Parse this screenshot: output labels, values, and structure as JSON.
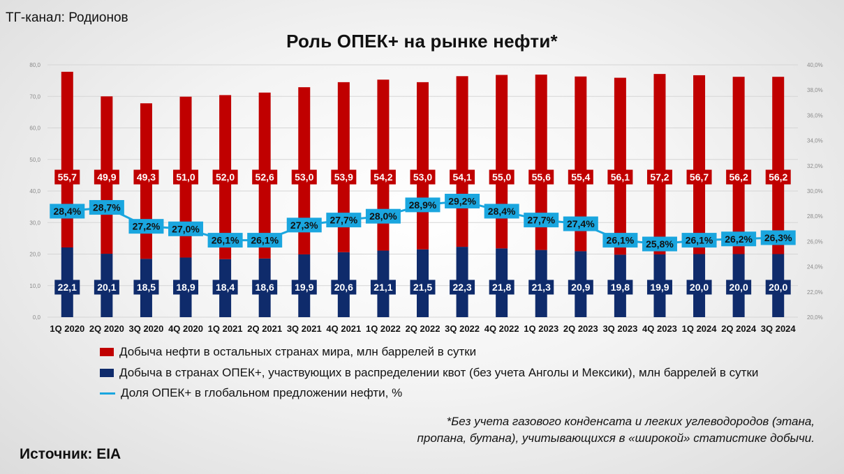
{
  "header": {
    "channel": "ТГ-канал: Родионов",
    "title": "Роль ОПЕК+ на рынке нефти*"
  },
  "colors": {
    "other": "#c00000",
    "opec": "#0f2b6b",
    "share_line": "#1aa6df",
    "share_label_bg": "#1aa6df",
    "grid": "#d5d5d5"
  },
  "chart_data": {
    "type": "bar",
    "stacked": true,
    "categories": [
      "1Q 2020",
      "2Q 2020",
      "3Q 2020",
      "4Q 2020",
      "1Q 2021",
      "2Q 2021",
      "3Q 2021",
      "4Q 2021",
      "1Q 2022",
      "2Q 2022",
      "3Q 2022",
      "4Q 2022",
      "1Q 2023",
      "2Q 2023",
      "3Q 2023",
      "4Q 2023",
      "1Q 2024",
      "2Q 2024",
      "3Q 2024"
    ],
    "left_axis": {
      "ylim": [
        0,
        80
      ],
      "ticks": [
        "0,0",
        "10,0",
        "20,0",
        "30,0",
        "40,0",
        "50,0",
        "60,0",
        "70,0",
        "80,0"
      ]
    },
    "right_axis": {
      "ylim": [
        20,
        40
      ],
      "ticks": [
        "20,0%",
        "22,0%",
        "24,0%",
        "26,0%",
        "28,0%",
        "30,0%",
        "32,0%",
        "34,0%",
        "36,0%",
        "38,0%",
        "40,0%"
      ]
    },
    "grid": true,
    "series": [
      {
        "name": "Добыча в странах ОПЕК+, участвующих в распределении квот (без учета Анголы и Мексики), млн баррелей в сутки",
        "kind": "bar",
        "axis": "left",
        "values": [
          22.1,
          20.1,
          18.5,
          18.9,
          18.4,
          18.6,
          19.9,
          20.6,
          21.1,
          21.5,
          22.3,
          21.8,
          21.3,
          20.9,
          19.8,
          19.9,
          20.0,
          20.0,
          20.0
        ],
        "labels": [
          "22,1",
          "20,1",
          "18,5",
          "18,9",
          "18,4",
          "18,6",
          "19,9",
          "20,6",
          "21,1",
          "21,5",
          "22,3",
          "21,8",
          "21,3",
          "20,9",
          "19,8",
          "19,9",
          "20,0",
          "20,0",
          "20,0"
        ]
      },
      {
        "name": "Добыча нефти в остальных странах мира, млн баррелей в сутки",
        "kind": "bar",
        "axis": "left",
        "values": [
          55.7,
          49.9,
          49.3,
          51.0,
          52.0,
          52.6,
          53.0,
          53.9,
          54.2,
          53.0,
          54.1,
          55.0,
          55.6,
          55.4,
          56.1,
          57.2,
          56.7,
          56.2,
          56.2
        ],
        "labels": [
          "55,7",
          "49,9",
          "49,3",
          "51,0",
          "52,0",
          "52,6",
          "53,0",
          "53,9",
          "54,2",
          "53,0",
          "54,1",
          "55,0",
          "55,6",
          "55,4",
          "56,1",
          "57,2",
          "56,7",
          "56,2",
          "56,2"
        ]
      },
      {
        "name": "Доля ОПЕК+ в глобальном предложении нефти, %",
        "kind": "line",
        "axis": "right",
        "values": [
          28.4,
          28.7,
          27.2,
          27.0,
          26.1,
          26.1,
          27.3,
          27.7,
          28.0,
          28.9,
          29.2,
          28.4,
          27.7,
          27.4,
          26.1,
          25.8,
          26.1,
          26.2,
          26.3
        ],
        "labels": [
          "28,4%",
          "28,7%",
          "27,2%",
          "27,0%",
          "26,1%",
          "26,1%",
          "27,3%",
          "27,7%",
          "28,0%",
          "28,9%",
          "29,2%",
          "28,4%",
          "27,7%",
          "27,4%",
          "26,1%",
          "25,8%",
          "26,1%",
          "26,2%",
          "26,3%"
        ]
      }
    ]
  },
  "legend": {
    "other": "Добыча нефти в остальных странах мира, млн баррелей в сутки",
    "opec": "Добыча в странах ОПЕК+, участвующих в распределении квот (без учета Анголы и Мексики), млн баррелей в сутки",
    "share": "Доля ОПЕК+ в глобальном предложении нефти, %"
  },
  "footnote": {
    "line1": "*Без учета газового конденсата и легких углеводородов (этана,",
    "line2": "пропана, бутана), учитывающихся в «широкой» статистике добычи."
  },
  "source": "Источник: EIA"
}
